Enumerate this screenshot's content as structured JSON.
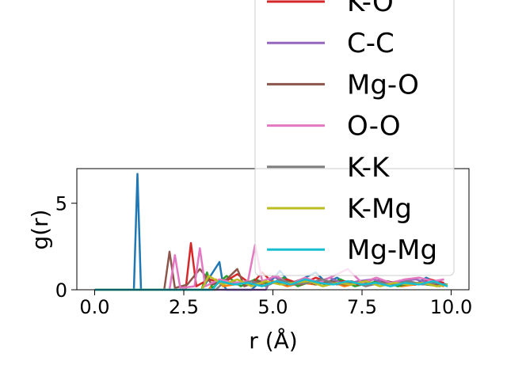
{
  "chart_data": {
    "type": "line",
    "title": "",
    "xlabel": "r (Å)",
    "ylabel": "g(r)",
    "xlim": [
      -0.5,
      10.5
    ],
    "ylim": [
      0,
      7
    ],
    "xticks": [
      "0.0",
      "2.5",
      "5.0",
      "7.5",
      "10.0"
    ],
    "xtick_values": [
      0,
      2.5,
      5,
      7.5,
      10
    ],
    "yticks": [
      "0",
      "5"
    ],
    "ytick_values": [
      0,
      5
    ],
    "grid": false,
    "legend_position": "upper-right (overflowing above the axes)",
    "series": [
      {
        "name": "",
        "color": "#1f77b4",
        "x": [
          0,
          1.1,
          1.2,
          1.3,
          2.0,
          3.0,
          3.5,
          3.6,
          3.7,
          4.4,
          4.6,
          4.9,
          5.2,
          5.5,
          5.8,
          6.2,
          6.5,
          6.8,
          7.1,
          7.4,
          7.7,
          8.0,
          8.3,
          8.6,
          9.0,
          9.3,
          9.6,
          9.9
        ],
        "y": [
          0,
          0,
          6.7,
          0,
          0,
          0,
          1.6,
          0.3,
          0,
          0,
          0.4,
          0.4,
          1.1,
          0.3,
          0.6,
          1.0,
          0.4,
          0.7,
          0.3,
          0.5,
          0.3,
          0.6,
          0.4,
          0.5,
          0.3,
          0.7,
          0.4,
          0.3
        ]
      },
      {
        "name": "",
        "color": "#ff7f0e",
        "x": [
          0,
          3.2,
          3.4,
          3.6,
          4.2,
          4.6,
          5.0,
          5.4,
          5.8,
          6.2,
          6.6,
          7.0,
          7.4,
          7.8,
          8.2,
          8.6,
          9.0,
          9.4,
          9.8
        ],
        "y": [
          0,
          0,
          0.6,
          0.2,
          0.4,
          0.3,
          0.5,
          0.2,
          0.4,
          0.3,
          0.5,
          0.2,
          0.4,
          0.3,
          0.4,
          0.2,
          0.3,
          0.4,
          0.2
        ]
      },
      {
        "name": "",
        "color": "#2ca02c",
        "x": [
          0,
          3.0,
          3.15,
          3.3,
          3.7,
          4.1,
          4.5,
          4.9,
          5.3,
          5.7,
          6.1,
          6.5,
          6.9,
          7.3,
          7.7,
          8.1,
          8.5,
          8.9,
          9.3,
          9.7
        ],
        "y": [
          0,
          0,
          1.0,
          0.1,
          0.8,
          0.2,
          0.6,
          0.3,
          0.7,
          0.2,
          0.5,
          0.3,
          0.6,
          0.2,
          0.4,
          0.5,
          0.2,
          0.4,
          0.3,
          0.2
        ]
      },
      {
        "name": "K-O",
        "color": "#d62728",
        "x": [
          0,
          2.55,
          2.7,
          2.85,
          3.2,
          3.6,
          4.0,
          4.4,
          4.7,
          5.0,
          5.4,
          5.8,
          6.2,
          6.6,
          7.0,
          7.4,
          7.8,
          8.2,
          8.6,
          9.0,
          9.4,
          9.8
        ],
        "y": [
          0,
          0,
          2.7,
          0.2,
          0.6,
          0.4,
          0.9,
          0.3,
          1.0,
          0.4,
          0.6,
          0.3,
          0.7,
          0.4,
          0.5,
          0.3,
          0.6,
          0.4,
          0.5,
          0.3,
          0.6,
          0.4
        ]
      },
      {
        "name": "C-C",
        "color": "#9467bd",
        "x": [
          0,
          4.8,
          5.0,
          5.4,
          5.8,
          6.2,
          6.6,
          7.0,
          7.4,
          7.8,
          8.2,
          8.6,
          9.0,
          9.4,
          9.8
        ],
        "y": [
          0,
          0,
          0.8,
          0.3,
          0.6,
          0.4,
          0.7,
          0.3,
          0.5,
          0.6,
          0.4,
          0.5,
          0.6,
          0.4,
          0.6
        ]
      },
      {
        "name": "Mg-O",
        "color": "#8c564b",
        "x": [
          0,
          1.95,
          2.1,
          2.25,
          2.6,
          2.95,
          3.3,
          3.7,
          4.0,
          4.2,
          4.6,
          5.0,
          5.4,
          5.8,
          6.2,
          6.6,
          7.0,
          7.4,
          7.8,
          8.2,
          8.6,
          9.0,
          9.4,
          9.8
        ],
        "y": [
          0,
          0,
          2.2,
          0.1,
          0.3,
          1.2,
          0.3,
          0.6,
          1.2,
          0.2,
          0.5,
          0.4,
          0.3,
          0.6,
          0.3,
          0.5,
          0.3,
          0.4,
          0.3,
          0.5,
          0.3,
          0.4,
          0.3,
          0.3
        ]
      },
      {
        "name": "O-O",
        "color": "#e377c2",
        "x": [
          0,
          2.1,
          2.25,
          2.4,
          2.8,
          2.95,
          3.1,
          3.5,
          3.9,
          4.3,
          4.5,
          4.7,
          5.1,
          5.5,
          5.9,
          6.3,
          6.7,
          7.1,
          7.5,
          7.9,
          8.3,
          8.7,
          9.1,
          9.5,
          9.8
        ],
        "y": [
          0,
          0,
          2.0,
          0.1,
          0.2,
          2.4,
          0.2,
          0.6,
          0.4,
          0.5,
          2.6,
          0.5,
          0.8,
          0.3,
          0.7,
          0.4,
          0.8,
          1.2,
          0.4,
          0.7,
          0.4,
          0.6,
          0.7,
          0.5,
          0.6
        ]
      },
      {
        "name": "K-K",
        "color": "#7f7f7f",
        "x": [
          0,
          3.4,
          3.6,
          4.0,
          4.4,
          4.8,
          5.2,
          5.6,
          6.0,
          6.4,
          6.8,
          7.2,
          7.6,
          8.0,
          8.4,
          8.8,
          9.2,
          9.6,
          9.9
        ],
        "y": [
          0,
          0,
          0.4,
          0.3,
          0.5,
          0.2,
          0.6,
          0.3,
          0.4,
          0.6,
          0.3,
          0.5,
          0.2,
          0.4,
          0.3,
          0.5,
          0.3,
          0.4,
          0.2
        ]
      },
      {
        "name": "K-Mg",
        "color": "#bcbd22",
        "x": [
          0,
          3.0,
          3.2,
          3.6,
          4.0,
          4.4,
          4.8,
          5.2,
          5.6,
          6.0,
          6.4,
          6.8,
          7.2,
          7.6,
          8.0,
          8.4,
          8.8,
          9.2,
          9.6,
          9.9
        ],
        "y": [
          0,
          0,
          0.8,
          0.3,
          0.6,
          0.2,
          0.5,
          0.3,
          0.4,
          0.5,
          0.2,
          0.4,
          0.3,
          0.5,
          0.2,
          0.4,
          0.3,
          0.4,
          0.2,
          0.3
        ]
      },
      {
        "name": "Mg-Mg",
        "color": "#17becf",
        "x": [
          0,
          3.3,
          3.5,
          3.9,
          4.3,
          4.7,
          5.1,
          5.5,
          5.9,
          6.3,
          6.7,
          7.1,
          7.5,
          7.9,
          8.3,
          8.7,
          9.1,
          9.5,
          9.9
        ],
        "y": [
          0,
          0,
          0.5,
          0.3,
          0.4,
          0.2,
          0.5,
          0.3,
          0.6,
          0.4,
          0.3,
          0.5,
          0.3,
          0.4,
          0.2,
          0.4,
          0.3,
          0.5,
          0.2
        ]
      }
    ],
    "legend": {
      "entries": [
        {
          "label": "K-O",
          "color": "#d62728"
        },
        {
          "label": "C-C",
          "color": "#9467bd"
        },
        {
          "label": "Mg-O",
          "color": "#8c564b"
        },
        {
          "label": "O-O",
          "color": "#e377c2"
        },
        {
          "label": "K-K",
          "color": "#7f7f7f"
        },
        {
          "label": "K-Mg",
          "color": "#bcbd22"
        },
        {
          "label": "Mg-Mg",
          "color": "#17becf"
        }
      ]
    }
  }
}
